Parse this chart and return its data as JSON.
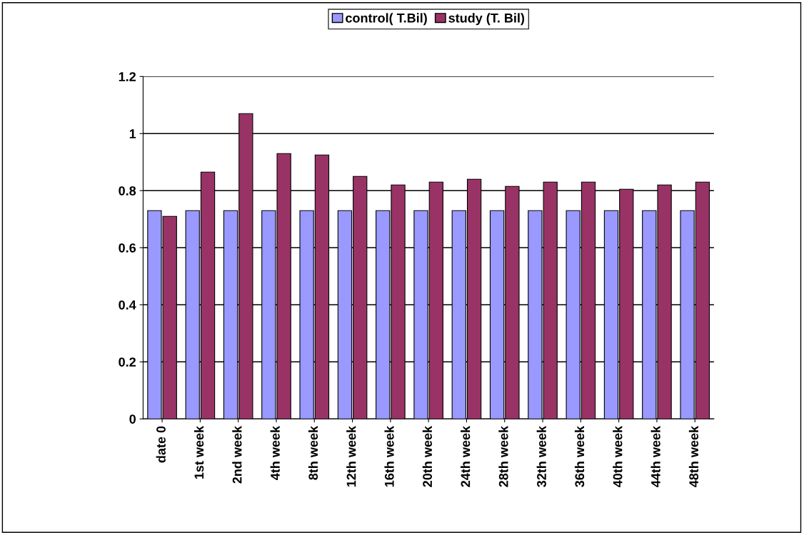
{
  "chart_data": {
    "type": "bar",
    "categories": [
      "date 0",
      "1st week",
      "2nd week",
      "4th week",
      "8th week",
      "12th week",
      "16th week",
      "20th week",
      "24th week",
      "28th week",
      "32th week",
      "36th week",
      "40th week",
      "44th week",
      "48th week"
    ],
    "series": [
      {
        "name": "control( T.Bil)",
        "color": "#9999ff",
        "values": [
          0.73,
          0.73,
          0.73,
          0.73,
          0.73,
          0.73,
          0.73,
          0.73,
          0.73,
          0.73,
          0.73,
          0.73,
          0.73,
          0.73,
          0.73
        ]
      },
      {
        "name": "study (T. Bil)",
        "color": "#993366",
        "values": [
          0.71,
          0.865,
          1.07,
          0.93,
          0.925,
          0.85,
          0.82,
          0.83,
          0.84,
          0.815,
          0.83,
          0.83,
          0.805,
          0.82,
          0.83
        ]
      }
    ],
    "ylim": [
      0,
      1.2
    ],
    "yticks": [
      0,
      0.2,
      0.4,
      0.6,
      0.8,
      1,
      1.2
    ],
    "grid": "y",
    "legend": "top"
  }
}
